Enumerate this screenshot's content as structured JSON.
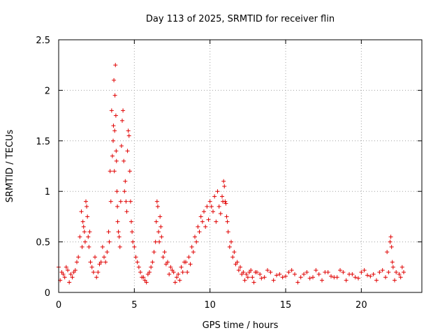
{
  "chart_data": {
    "type": "scatter",
    "title": "Day 113 of 2025, SRMTID for receiver flin",
    "xlabel": "GPS time / hours",
    "ylabel": "SRMTID / TECUs",
    "xlim": [
      0,
      24
    ],
    "ylim": [
      0,
      2.5
    ],
    "xticks": [
      0,
      5,
      10,
      15,
      20
    ],
    "yticks": [
      0,
      0.5,
      1,
      1.5,
      2,
      2.5
    ],
    "ytick_labels": [
      "0",
      "0.5",
      "1",
      "1.5",
      "2",
      "2.5"
    ],
    "grid": true,
    "marker": "plus",
    "color": "#e00000",
    "series": [
      {
        "name": "SRMTID",
        "x": [
          0.0,
          0.2,
          0.4,
          0.6,
          0.8,
          1.0,
          1.2,
          1.4,
          1.5,
          1.6,
          1.7,
          1.8,
          1.9,
          2.0,
          2.1,
          2.2,
          2.4,
          2.6,
          2.8,
          3.0,
          3.2,
          3.3,
          3.4,
          3.5,
          3.6,
          3.65,
          3.7,
          3.75,
          3.8,
          3.85,
          3.9,
          4.0,
          4.1,
          4.2,
          4.3,
          4.4,
          4.5,
          4.6,
          4.7,
          4.8,
          4.9,
          5.0,
          5.2,
          5.4,
          5.6,
          5.8,
          6.0,
          6.2,
          6.4,
          6.5,
          6.6,
          6.7,
          6.8,
          7.0,
          7.2,
          7.4,
          7.6,
          7.8,
          8.0,
          8.2,
          8.4,
          8.6,
          8.8,
          9.0,
          9.2,
          9.4,
          9.6,
          9.8,
          10.0,
          10.2,
          10.4,
          10.6,
          10.8,
          10.9,
          11.0,
          11.1,
          11.2,
          11.4,
          11.6,
          11.8,
          12.0,
          12.2,
          12.4,
          12.6,
          12.8,
          13.0,
          13.3,
          13.6,
          14.0,
          14.4,
          14.8,
          15.2,
          15.6,
          16.0,
          16.4,
          16.8,
          17.2,
          17.6,
          18.0,
          18.4,
          18.8,
          19.2,
          19.6,
          20.0,
          20.4,
          20.8,
          21.2,
          21.6,
          21.8,
          21.9,
          22.0,
          22.1,
          22.3,
          22.6,
          22.8,
          0.1,
          0.3,
          0.5,
          0.7,
          0.9,
          1.1,
          1.3,
          1.55,
          1.65,
          1.75,
          1.85,
          1.95,
          2.05,
          2.3,
          2.5,
          2.7,
          2.9,
          3.1,
          3.35,
          3.45,
          3.55,
          3.62,
          3.68,
          3.72,
          3.78,
          3.82,
          3.88,
          3.95,
          4.05,
          4.15,
          4.25,
          4.35,
          4.45,
          4.55,
          4.65,
          4.75,
          4.85,
          5.1,
          5.3,
          5.5,
          5.7,
          5.9,
          6.1,
          6.3,
          6.45,
          6.55,
          6.65,
          6.75,
          6.9,
          7.1,
          7.3,
          7.5,
          7.7,
          7.9,
          8.1,
          8.3,
          8.5,
          8.7,
          8.9,
          9.1,
          9.3,
          9.5,
          9.7,
          9.9,
          10.1,
          10.3,
          10.5,
          10.7,
          10.85,
          10.95,
          11.05,
          11.15,
          11.3,
          11.5,
          11.7,
          11.9,
          12.1,
          12.3,
          12.5,
          12.7,
          12.9,
          13.1,
          13.4,
          13.8,
          14.2,
          14.6,
          15.0,
          15.4,
          15.8,
          16.2,
          16.6,
          17.0,
          17.4,
          17.8,
          18.2,
          18.6,
          19.0,
          19.4,
          19.8,
          20.2,
          20.6,
          21.0,
          21.4,
          21.7,
          21.95,
          22.05,
          22.2,
          22.5,
          22.7
        ],
        "y": [
          0.25,
          0.2,
          0.15,
          0.22,
          0.18,
          0.2,
          0.3,
          0.55,
          0.8,
          0.7,
          0.6,
          0.9,
          0.75,
          0.45,
          0.3,
          0.25,
          0.35,
          0.2,
          0.3,
          0.35,
          0.4,
          0.6,
          1.2,
          1.8,
          1.5,
          2.1,
          1.6,
          2.25,
          1.4,
          1.0,
          0.7,
          0.55,
          0.9,
          1.7,
          1.3,
          1.1,
          0.8,
          1.6,
          1.2,
          0.7,
          0.5,
          0.45,
          0.3,
          0.2,
          0.15,
          0.1,
          0.2,
          0.3,
          0.5,
          0.9,
          0.6,
          0.75,
          0.55,
          0.4,
          0.3,
          0.25,
          0.2,
          0.15,
          0.12,
          0.2,
          0.3,
          0.35,
          0.45,
          0.55,
          0.65,
          0.75,
          0.8,
          0.85,
          0.9,
          0.8,
          0.7,
          0.85,
          0.95,
          1.1,
          0.9,
          0.75,
          0.6,
          0.5,
          0.4,
          0.3,
          0.25,
          0.2,
          0.18,
          0.2,
          0.15,
          0.2,
          0.18,
          0.15,
          0.2,
          0.17,
          0.15,
          0.2,
          0.18,
          0.15,
          0.2,
          0.15,
          0.18,
          0.2,
          0.16,
          0.15,
          0.2,
          0.18,
          0.15,
          0.2,
          0.17,
          0.18,
          0.2,
          0.15,
          0.2,
          0.5,
          0.45,
          0.25,
          0.2,
          0.15,
          0.2,
          0.12,
          0.18,
          0.25,
          0.1,
          0.15,
          0.22,
          0.35,
          0.45,
          0.65,
          0.5,
          0.85,
          0.55,
          0.6,
          0.2,
          0.15,
          0.28,
          0.45,
          0.3,
          0.5,
          0.9,
          1.35,
          1.65,
          1.2,
          1.95,
          1.75,
          1.3,
          0.85,
          0.6,
          0.45,
          1.45,
          1.8,
          1.0,
          0.9,
          1.4,
          1.55,
          0.9,
          0.6,
          0.35,
          0.25,
          0.15,
          0.12,
          0.18,
          0.25,
          0.4,
          0.7,
          0.85,
          0.5,
          0.65,
          0.35,
          0.28,
          0.18,
          0.22,
          0.1,
          0.18,
          0.25,
          0.3,
          0.2,
          0.28,
          0.4,
          0.5,
          0.6,
          0.7,
          0.65,
          0.72,
          0.85,
          0.95,
          1.0,
          0.78,
          0.9,
          1.05,
          0.88,
          0.7,
          0.45,
          0.35,
          0.28,
          0.22,
          0.18,
          0.12,
          0.15,
          0.22,
          0.1,
          0.2,
          0.14,
          0.22,
          0.12,
          0.18,
          0.16,
          0.22,
          0.1,
          0.18,
          0.14,
          0.22,
          0.12,
          0.2,
          0.15,
          0.22,
          0.12,
          0.18,
          0.14,
          0.22,
          0.16,
          0.12,
          0.22,
          0.4,
          0.55,
          0.3,
          0.12,
          0.18,
          0.25
        ]
      }
    ]
  }
}
